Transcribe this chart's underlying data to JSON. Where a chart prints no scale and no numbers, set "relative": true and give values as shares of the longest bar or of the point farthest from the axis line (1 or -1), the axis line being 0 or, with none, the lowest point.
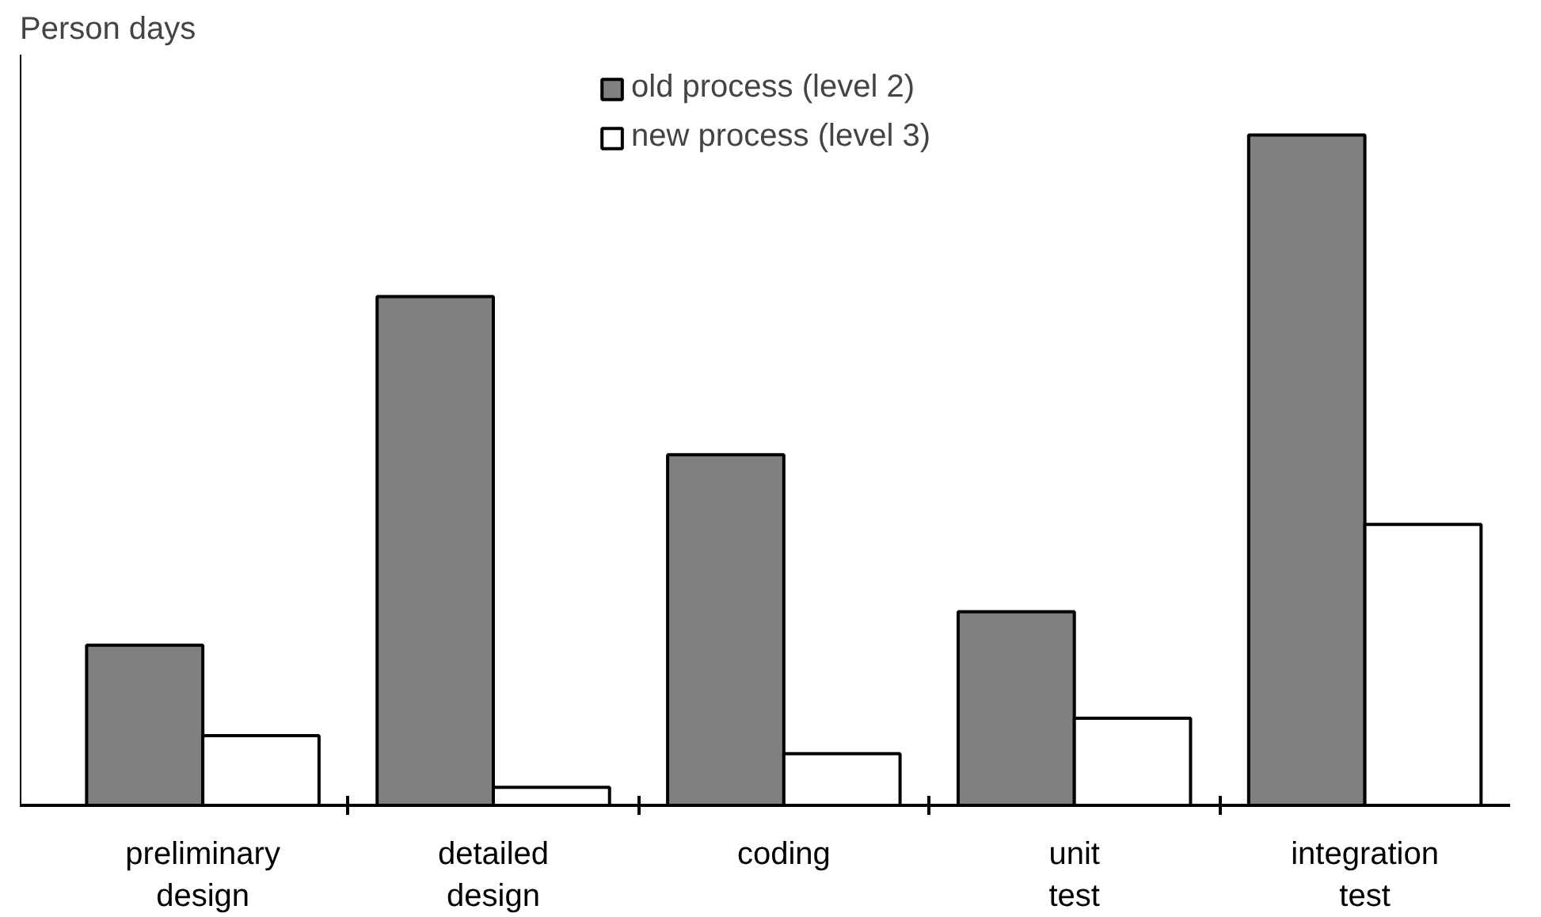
{
  "chart_data": {
    "type": "bar",
    "ylabel": "Person days",
    "relative": true,
    "categories": [
      "preliminary\ndesign",
      "detailed\ndesign",
      "coding",
      "unit\ntest",
      "integration\ntest"
    ],
    "series": [
      {
        "name": "old process (level 2)",
        "color": "#808080",
        "values": [
          0.239,
          0.759,
          0.523,
          0.289,
          1
        ]
      },
      {
        "name": "new process (level 3)",
        "color": "#ffffff",
        "values": [
          0.104,
          0.027,
          0.077,
          0.13,
          0.419
        ]
      }
    ],
    "legend": "top",
    "grid": false
  }
}
